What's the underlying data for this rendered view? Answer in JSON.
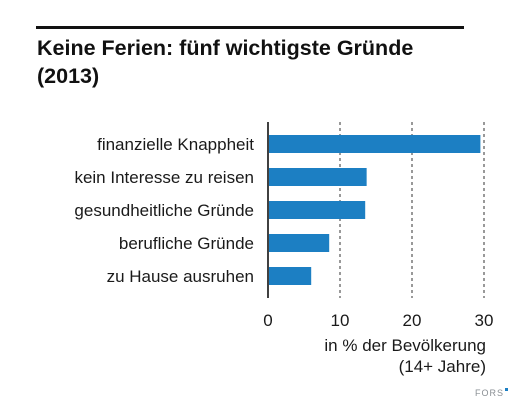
{
  "chart_data": {
    "type": "bar",
    "orientation": "horizontal",
    "title": "Keine Ferien: fünf wichtigste Gründe (2013)",
    "categories": [
      "finanzielle Knappheit",
      "kein Interesse zu reisen",
      "gesundheitliche Gründe",
      "berufliche Gründe",
      "zu Hause ausruhen"
    ],
    "values": [
      29.5,
      13.7,
      13.5,
      8.5,
      6.0
    ],
    "xlabel": "in % der Bevölkerung (14+ Jahre)",
    "xlim": [
      0,
      30
    ],
    "xticks": [
      0,
      10,
      20,
      30
    ],
    "grid": "vertical dashed",
    "bar_color": "#1c7fc3"
  },
  "header": {
    "title_line1": "Keine Ferien: fünf wichtigste Gründe",
    "title_line2": "(2013)"
  },
  "axis": {
    "title_line1": "in % der Bevölkerung",
    "title_line2": "(14+ Jahre)"
  },
  "footer": {
    "logo_text": "FORS"
  }
}
